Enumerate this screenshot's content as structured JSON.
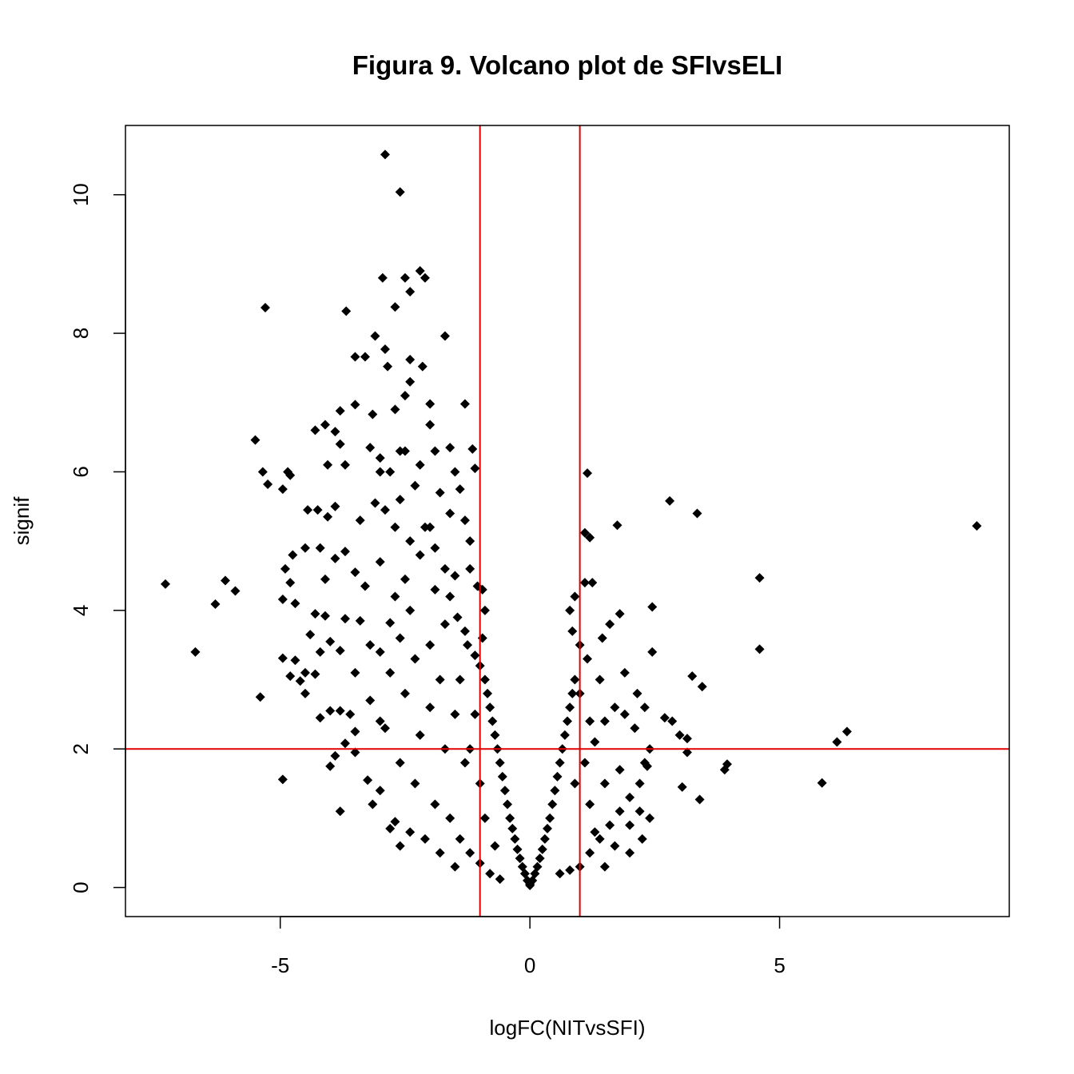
{
  "chart_data": {
    "type": "scatter",
    "title": "Figura 9. Volcano plot de SFIvsELI",
    "xlabel": "logFC(NITvsSFI)",
    "ylabel": "signif",
    "xlim": [
      -8.1,
      9.6
    ],
    "ylim": [
      -0.42,
      11.0
    ],
    "xticks": [
      -5,
      0,
      5
    ],
    "yticks": [
      0,
      2,
      4,
      6,
      8,
      10
    ],
    "grid": false,
    "legend": "none",
    "point_color": "#000000",
    "point_shape": "diamond",
    "reference_line_color": "#e00000",
    "reference_lines": {
      "vertical": [
        -1,
        1
      ],
      "horizontal": [
        2
      ]
    },
    "points": [
      [
        -2.9,
        10.58
      ],
      [
        -2.6,
        10.04
      ],
      [
        -2.95,
        8.8
      ],
      [
        -2.5,
        8.8
      ],
      [
        -2.4,
        8.6
      ],
      [
        -2.2,
        8.9
      ],
      [
        -2.1,
        8.8
      ],
      [
        -5.3,
        8.37
      ],
      [
        -3.68,
        8.32
      ],
      [
        -2.7,
        8.38
      ],
      [
        -1.7,
        7.96
      ],
      [
        -3.1,
        7.96
      ],
      [
        -2.9,
        7.77
      ],
      [
        -3.3,
        7.66
      ],
      [
        -3.5,
        7.66
      ],
      [
        -2.4,
        7.62
      ],
      [
        -2.85,
        7.52
      ],
      [
        -2.15,
        7.52
      ],
      [
        -2.4,
        7.3
      ],
      [
        -2.5,
        7.1
      ],
      [
        -2.0,
        6.98
      ],
      [
        -1.3,
        6.98
      ],
      [
        -3.5,
        6.97
      ],
      [
        -3.8,
        6.88
      ],
      [
        -2.7,
        6.9
      ],
      [
        -3.15,
        6.83
      ],
      [
        -4.1,
        6.68
      ],
      [
        -4.3,
        6.6
      ],
      [
        -2.0,
        6.68
      ],
      [
        -3.9,
        6.58
      ],
      [
        -3.8,
        6.4
      ],
      [
        -5.5,
        6.46
      ],
      [
        -3.2,
        6.35
      ],
      [
        -2.5,
        6.3
      ],
      [
        -1.6,
        6.35
      ],
      [
        -1.15,
        6.33
      ],
      [
        -1.1,
        6.05
      ],
      [
        -5.35,
        6.0
      ],
      [
        -4.85,
        6.0
      ],
      [
        -4.8,
        5.95
      ],
      [
        -4.05,
        6.1
      ],
      [
        -3.7,
        6.1
      ],
      [
        -3.0,
        6.0
      ],
      [
        -2.2,
        6.1
      ],
      [
        -1.4,
        5.75
      ],
      [
        -5.25,
        5.82
      ],
      [
        -4.95,
        5.75
      ],
      [
        -3.9,
        5.5
      ],
      [
        -4.45,
        5.45
      ],
      [
        -4.25,
        5.45
      ],
      [
        -3.1,
        5.55
      ],
      [
        -2.6,
        5.6
      ],
      [
        -4.05,
        5.35
      ],
      [
        -3.4,
        5.3
      ],
      [
        -2.9,
        5.45
      ],
      [
        -2.1,
        5.2
      ],
      [
        -4.5,
        4.9
      ],
      [
        -4.2,
        4.9
      ],
      [
        -3.7,
        4.85
      ],
      [
        -4.75,
        4.8
      ],
      [
        -3.9,
        4.75
      ],
      [
        -3.5,
        4.55
      ],
      [
        -4.9,
        4.6
      ],
      [
        -4.8,
        4.4
      ],
      [
        -4.1,
        4.45
      ],
      [
        -3.0,
        4.7
      ],
      [
        -2.5,
        4.45
      ],
      [
        -1.2,
        4.6
      ],
      [
        -1.05,
        4.35
      ],
      [
        -0.95,
        4.3
      ],
      [
        -7.3,
        4.38
      ],
      [
        -6.1,
        4.43
      ],
      [
        -5.9,
        4.28
      ],
      [
        -6.3,
        4.09
      ],
      [
        -4.95,
        4.16
      ],
      [
        -4.7,
        4.1
      ],
      [
        -4.3,
        3.95
      ],
      [
        -4.1,
        3.92
      ],
      [
        -3.7,
        3.88
      ],
      [
        -3.4,
        3.85
      ],
      [
        -2.8,
        3.82
      ],
      [
        -3.3,
        4.35
      ],
      [
        -4.4,
        3.65
      ],
      [
        -4.0,
        3.55
      ],
      [
        -4.2,
        3.4
      ],
      [
        -3.8,
        3.42
      ],
      [
        -3.2,
        3.5
      ],
      [
        -6.7,
        3.4
      ],
      [
        -4.95,
        3.31
      ],
      [
        -4.7,
        3.28
      ],
      [
        -4.5,
        3.1
      ],
      [
        -4.3,
        3.08
      ],
      [
        -4.8,
        3.05
      ],
      [
        -4.6,
        2.98
      ],
      [
        -3.5,
        3.1
      ],
      [
        -5.4,
        2.75
      ],
      [
        -4.5,
        2.8
      ],
      [
        -3.8,
        2.55
      ],
      [
        -4.0,
        2.55
      ],
      [
        -4.2,
        2.45
      ],
      [
        -3.6,
        2.5
      ],
      [
        -3.0,
        2.4
      ],
      [
        -3.5,
        2.25
      ],
      [
        -3.7,
        2.08
      ],
      [
        -3.9,
        1.9
      ],
      [
        -3.5,
        1.95
      ],
      [
        -4.0,
        1.75
      ],
      [
        -3.25,
        1.55
      ],
      [
        -3.0,
        1.4
      ],
      [
        -4.95,
        1.56
      ],
      [
        -3.8,
        1.1
      ],
      [
        -3.15,
        1.2
      ],
      [
        -2.7,
        0.95
      ],
      [
        -2.8,
        0.85
      ],
      [
        -2.6,
        0.6
      ],
      [
        -2.4,
        0.8
      ],
      [
        -2.0,
        5.2
      ],
      [
        -1.9,
        4.9
      ],
      [
        -1.7,
        4.6
      ],
      [
        -1.5,
        4.5
      ],
      [
        -1.6,
        4.2
      ],
      [
        -1.45,
        3.9
      ],
      [
        -1.3,
        3.7
      ],
      [
        -1.25,
        3.5
      ],
      [
        -1.1,
        3.35
      ],
      [
        -1.0,
        3.2
      ],
      [
        -0.9,
        3.0
      ],
      [
        -0.85,
        2.8
      ],
      [
        -0.8,
        2.6
      ],
      [
        -0.75,
        2.4
      ],
      [
        -0.7,
        2.2
      ],
      [
        -0.65,
        2.0
      ],
      [
        -0.6,
        1.8
      ],
      [
        -0.55,
        1.6
      ],
      [
        -0.5,
        1.4
      ],
      [
        -0.45,
        1.2
      ],
      [
        -0.4,
        1.0
      ],
      [
        -0.35,
        0.85
      ],
      [
        -0.3,
        0.7
      ],
      [
        -0.25,
        0.55
      ],
      [
        -0.2,
        0.42
      ],
      [
        -0.15,
        0.3
      ],
      [
        -0.1,
        0.2
      ],
      [
        -0.05,
        0.1
      ],
      [
        0.0,
        0.05
      ],
      [
        -1.5,
        2.5
      ],
      [
        -1.8,
        3.0
      ],
      [
        -2.0,
        3.5
      ],
      [
        -1.7,
        2.0
      ],
      [
        -2.2,
        2.2
      ],
      [
        -2.5,
        2.8
      ],
      [
        -2.8,
        3.1
      ],
      [
        -2.3,
        1.5
      ],
      [
        -1.9,
        1.2
      ],
      [
        -1.6,
        1.0
      ],
      [
        -1.4,
        0.7
      ],
      [
        -1.2,
        0.5
      ],
      [
        -1.0,
        0.35
      ],
      [
        -0.8,
        0.2
      ],
      [
        -0.6,
        0.12
      ],
      [
        -2.6,
        1.8
      ],
      [
        -2.9,
        2.3
      ],
      [
        -3.2,
        2.7
      ],
      [
        -2.4,
        4.0
      ],
      [
        -2.7,
        4.2
      ],
      [
        -3.0,
        3.4
      ],
      [
        -1.3,
        1.8
      ],
      [
        -1.0,
        1.5
      ],
      [
        -0.9,
        1.0
      ],
      [
        -0.7,
        0.6
      ],
      [
        -2.1,
        0.7
      ],
      [
        -1.8,
        0.5
      ],
      [
        -1.5,
        0.3
      ],
      [
        -1.1,
        2.5
      ],
      [
        -1.4,
        3.0
      ],
      [
        -1.2,
        2.0
      ],
      [
        -2.0,
        2.6
      ],
      [
        -2.3,
        3.3
      ],
      [
        -1.7,
        3.8
      ],
      [
        -2.6,
        3.6
      ],
      [
        -1.9,
        4.3
      ],
      [
        -2.2,
        4.8
      ],
      [
        -2.4,
        5.0
      ],
      [
        -2.7,
        5.2
      ],
      [
        -1.6,
        5.4
      ],
      [
        -1.3,
        5.3
      ],
      [
        -1.2,
        5.0
      ],
      [
        -1.8,
        5.7
      ],
      [
        -2.3,
        5.8
      ],
      [
        -2.8,
        6.0
      ],
      [
        -3.0,
        6.2
      ],
      [
        -2.6,
        6.3
      ],
      [
        -1.9,
        6.3
      ],
      [
        -1.5,
        6.0
      ],
      [
        -0.9,
        4.0
      ],
      [
        -0.95,
        3.6
      ],
      [
        0.0,
        0.03
      ],
      [
        0.05,
        0.1
      ],
      [
        0.1,
        0.2
      ],
      [
        0.15,
        0.3
      ],
      [
        0.2,
        0.42
      ],
      [
        0.25,
        0.55
      ],
      [
        0.3,
        0.7
      ],
      [
        0.35,
        0.85
      ],
      [
        0.4,
        1.0
      ],
      [
        0.45,
        1.2
      ],
      [
        0.5,
        1.4
      ],
      [
        0.55,
        1.6
      ],
      [
        0.6,
        1.8
      ],
      [
        0.65,
        2.0
      ],
      [
        0.7,
        2.2
      ],
      [
        0.75,
        2.4
      ],
      [
        0.8,
        2.6
      ],
      [
        0.85,
        2.8
      ],
      [
        0.9,
        3.0
      ],
      [
        0.6,
        0.2
      ],
      [
        0.8,
        0.25
      ],
      [
        1.0,
        0.3
      ],
      [
        1.2,
        0.5
      ],
      [
        1.4,
        0.7
      ],
      [
        1.6,
        0.9
      ],
      [
        1.8,
        1.1
      ],
      [
        2.0,
        1.3
      ],
      [
        2.2,
        1.5
      ],
      [
        2.35,
        1.75
      ],
      [
        0.9,
        1.5
      ],
      [
        1.1,
        1.8
      ],
      [
        1.3,
        2.1
      ],
      [
        1.5,
        2.4
      ],
      [
        1.7,
        2.6
      ],
      [
        1.9,
        2.5
      ],
      [
        2.1,
        2.3
      ],
      [
        1.2,
        1.2
      ],
      [
        1.5,
        1.5
      ],
      [
        1.8,
        1.7
      ],
      [
        2.0,
        0.9
      ],
      [
        2.2,
        1.1
      ],
      [
        2.4,
        1.0
      ],
      [
        1.0,
        2.8
      ],
      [
        1.2,
        2.4
      ],
      [
        1.4,
        3.0
      ],
      [
        1.15,
        3.3
      ],
      [
        1.0,
        3.5
      ],
      [
        0.85,
        3.7
      ],
      [
        0.8,
        4.0
      ],
      [
        0.9,
        4.2
      ],
      [
        1.1,
        4.4
      ],
      [
        1.25,
        4.4
      ],
      [
        1.45,
        3.6
      ],
      [
        1.6,
        3.8
      ],
      [
        1.8,
        3.95
      ],
      [
        1.1,
        5.12
      ],
      [
        1.2,
        5.05
      ],
      [
        1.75,
        5.23
      ],
      [
        1.15,
        5.98
      ],
      [
        2.8,
        5.58
      ],
      [
        3.35,
        5.4
      ],
      [
        2.45,
        4.05
      ],
      [
        1.9,
        3.1
      ],
      [
        2.15,
        2.8
      ],
      [
        2.3,
        2.6
      ],
      [
        2.45,
        3.4
      ],
      [
        2.7,
        2.45
      ],
      [
        2.85,
        2.4
      ],
      [
        3.0,
        2.2
      ],
      [
        3.15,
        2.15
      ],
      [
        3.25,
        3.05
      ],
      [
        3.45,
        2.9
      ],
      [
        3.15,
        1.95
      ],
      [
        3.05,
        1.45
      ],
      [
        3.4,
        1.27
      ],
      [
        3.9,
        1.7
      ],
      [
        3.95,
        1.78
      ],
      [
        2.4,
        2.0
      ],
      [
        2.3,
        1.8
      ],
      [
        4.6,
        4.47
      ],
      [
        4.6,
        3.44
      ],
      [
        6.15,
        2.1
      ],
      [
        6.35,
        2.25
      ],
      [
        5.85,
        1.51
      ],
      [
        8.95,
        5.22
      ],
      [
        1.3,
        0.8
      ],
      [
        1.7,
        0.6
      ],
      [
        2.0,
        0.5
      ],
      [
        1.5,
        0.3
      ],
      [
        2.25,
        0.7
      ]
    ]
  }
}
